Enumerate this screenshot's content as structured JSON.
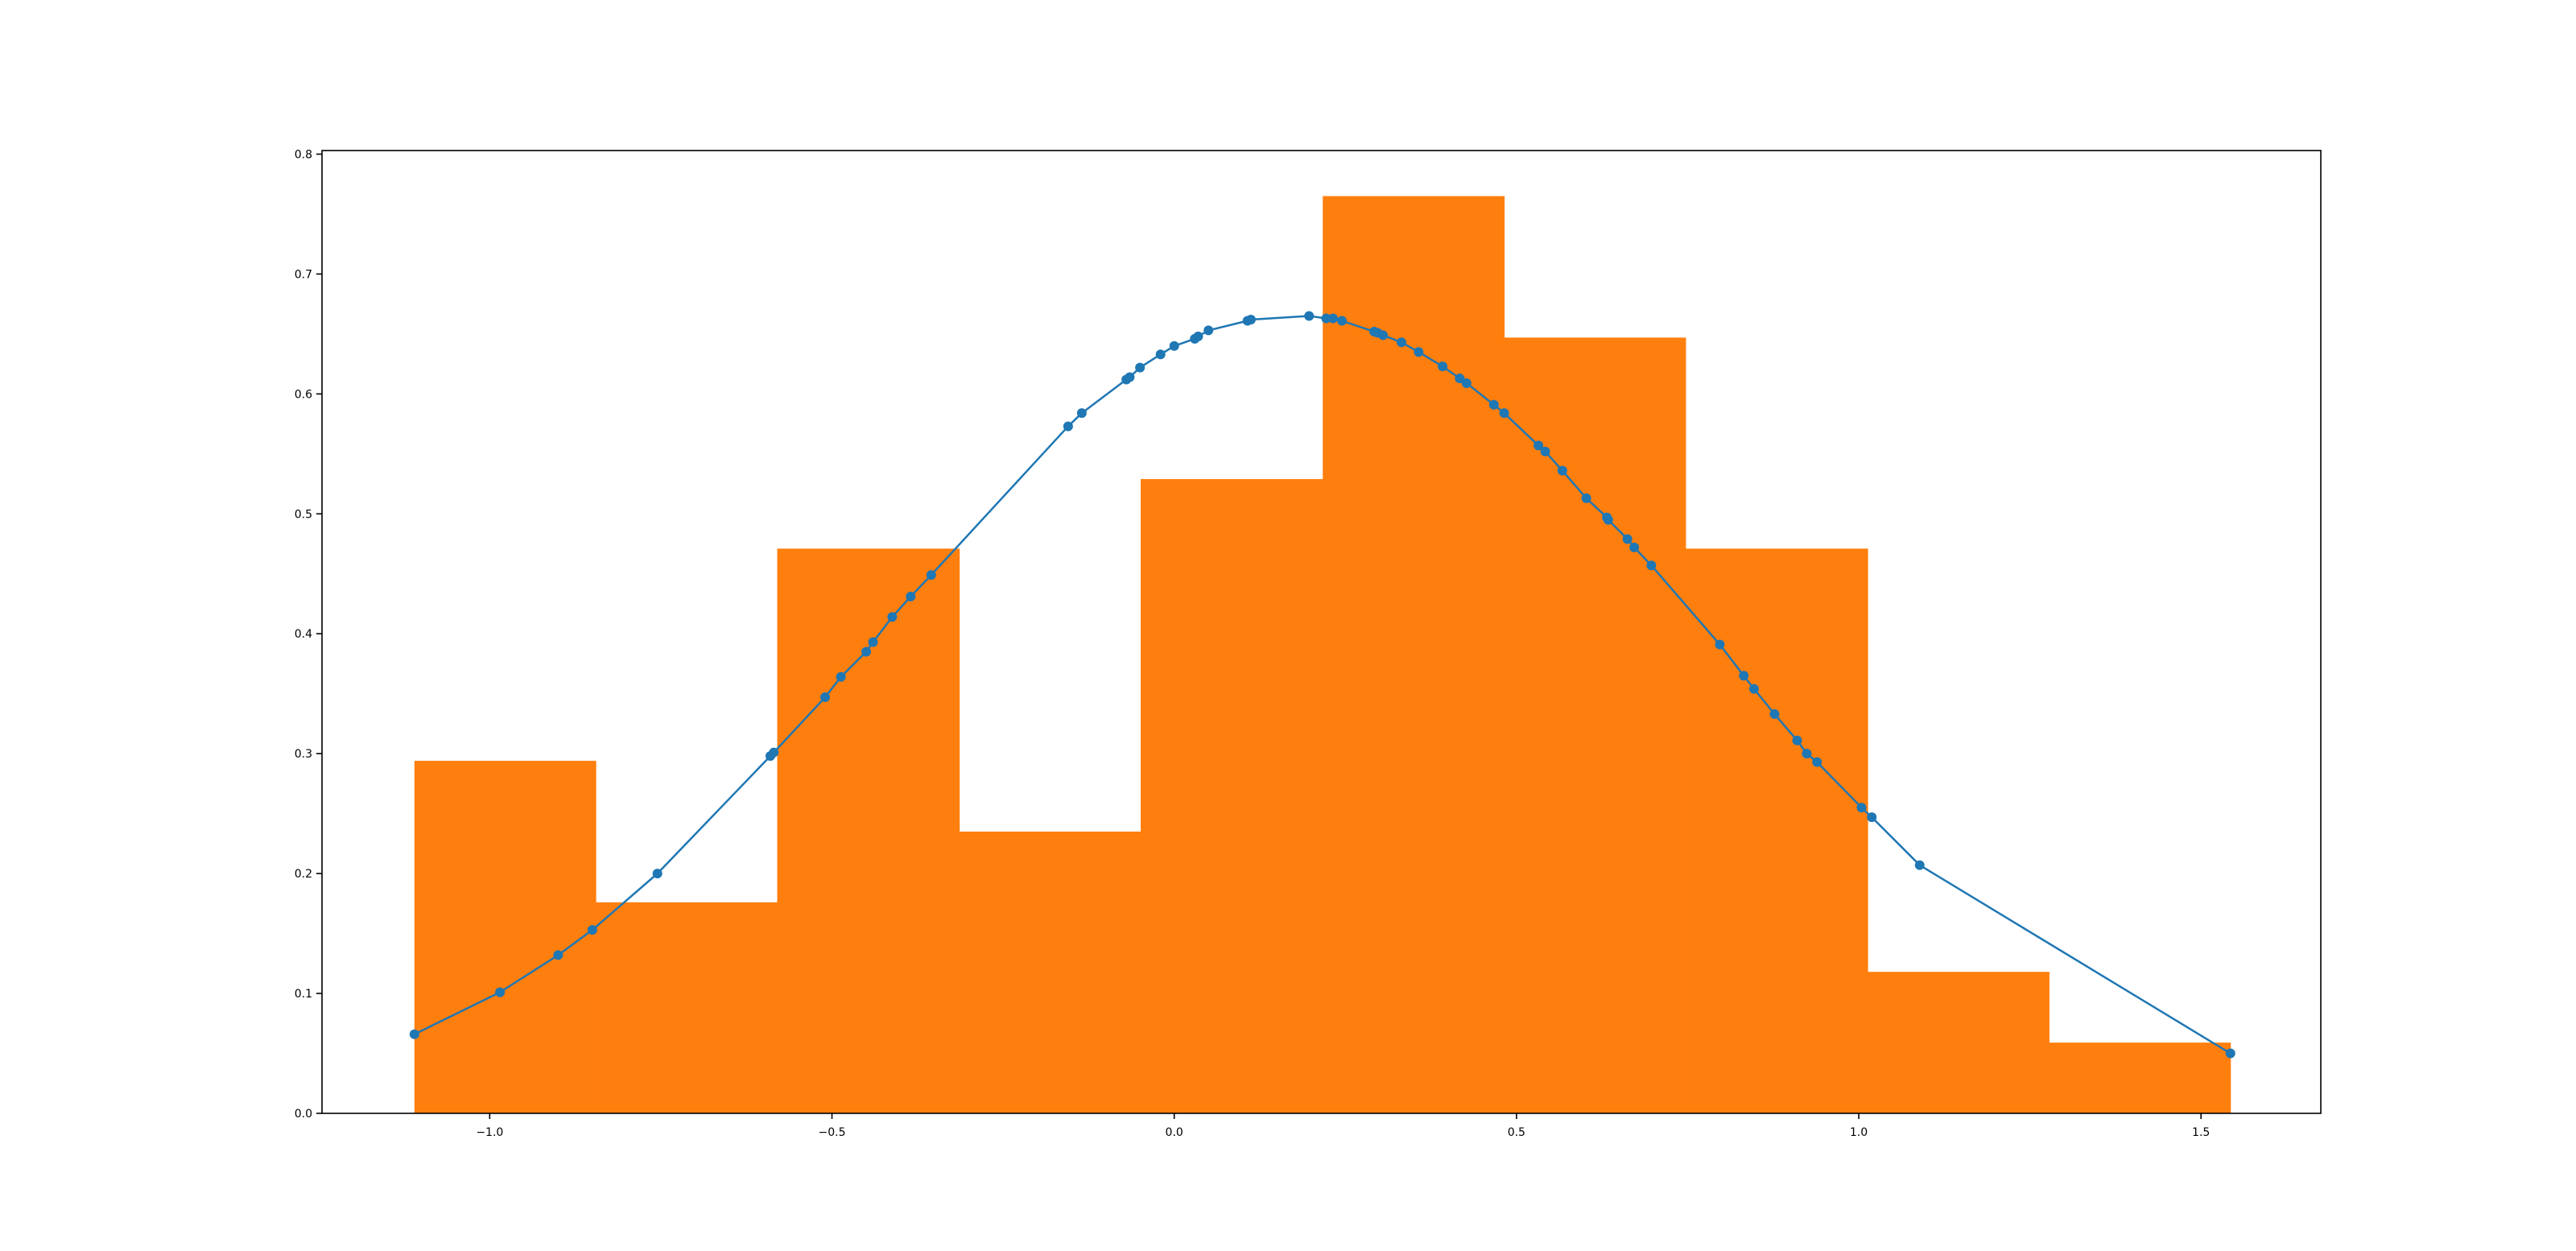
{
  "chart_data": {
    "type": "bar",
    "title": "",
    "xlabel": "",
    "ylabel": "",
    "xlim": [
      -1.245,
      1.675
    ],
    "ylim": [
      0,
      0.803
    ],
    "grid": false,
    "x_ticks": [
      {
        "value": -1.0,
        "label": "−1.0"
      },
      {
        "value": -0.5,
        "label": "−0.5"
      },
      {
        "value": 0.0,
        "label": "0.0"
      },
      {
        "value": 0.5,
        "label": "0.5"
      },
      {
        "value": 1.0,
        "label": "1.0"
      },
      {
        "value": 1.5,
        "label": "1.5"
      }
    ],
    "y_ticks": [
      {
        "value": 0.0,
        "label": "0.0"
      },
      {
        "value": 0.1,
        "label": "0.1"
      },
      {
        "value": 0.2,
        "label": "0.2"
      },
      {
        "value": 0.3,
        "label": "0.3"
      },
      {
        "value": 0.4,
        "label": "0.4"
      },
      {
        "value": 0.5,
        "label": "0.5"
      },
      {
        "value": 0.6,
        "label": "0.6"
      },
      {
        "value": 0.7,
        "label": "0.7"
      },
      {
        "value": 0.8,
        "label": "0.8"
      }
    ],
    "histogram": {
      "color": "#ff7f0e",
      "bin_edges": [
        -1.11,
        -0.845,
        -0.58,
        -0.314,
        -0.049,
        0.217,
        0.482,
        0.747,
        1.013,
        1.278,
        1.543
      ],
      "values": [
        0.294,
        0.176,
        0.471,
        0.235,
        0.529,
        0.765,
        0.647,
        0.471,
        0.118,
        0.059
      ]
    },
    "series": [
      {
        "type": "line",
        "color": "#1f77b4",
        "markers": true,
        "x": [
          -1.11,
          -0.985,
          -0.9,
          -0.85,
          -0.755,
          -0.59,
          -0.585,
          -0.51,
          -0.487,
          -0.45,
          -0.44,
          -0.412,
          -0.385,
          -0.355,
          -0.155,
          -0.135,
          -0.07,
          -0.065,
          -0.05,
          -0.02,
          0.0,
          0.03,
          0.035,
          0.05,
          0.107,
          0.112,
          0.197,
          0.222,
          0.232,
          0.245,
          0.292,
          0.297,
          0.305,
          0.332,
          0.357,
          0.392,
          0.417,
          0.427,
          0.467,
          0.482,
          0.532,
          0.542,
          0.567,
          0.602,
          0.632,
          0.634,
          0.662,
          0.672,
          0.697,
          0.797,
          0.832,
          0.847,
          0.877,
          0.91,
          0.924,
          0.939,
          1.004,
          1.019,
          1.089,
          1.543
        ],
        "y": [
          0.066,
          0.101,
          0.132,
          0.153,
          0.2,
          0.298,
          0.301,
          0.347,
          0.364,
          0.385,
          0.393,
          0.414,
          0.431,
          0.449,
          0.573,
          0.584,
          0.612,
          0.614,
          0.622,
          0.633,
          0.64,
          0.646,
          0.648,
          0.653,
          0.661,
          0.662,
          0.665,
          0.663,
          0.663,
          0.661,
          0.652,
          0.651,
          0.649,
          0.643,
          0.635,
          0.623,
          0.613,
          0.609,
          0.591,
          0.584,
          0.557,
          0.552,
          0.536,
          0.513,
          0.497,
          0.495,
          0.479,
          0.472,
          0.457,
          0.391,
          0.365,
          0.354,
          0.333,
          0.311,
          0.3,
          0.293,
          0.255,
          0.247,
          0.207,
          0.05
        ]
      }
    ]
  }
}
